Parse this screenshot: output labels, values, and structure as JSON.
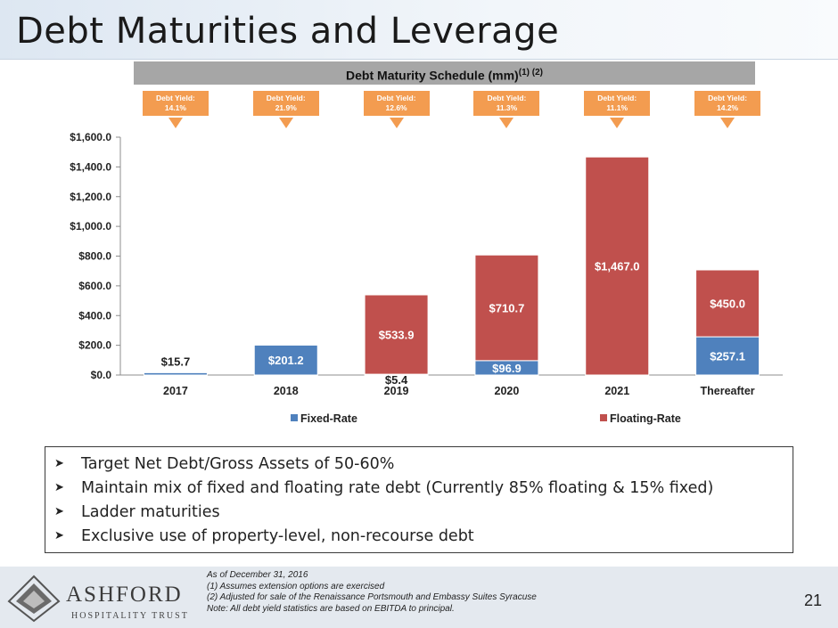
{
  "slide": {
    "title": "Debt Maturities and Leverage",
    "page_number": "21"
  },
  "chart_header": {
    "text": "Debt Maturity Schedule (mm)",
    "superscript": "(1) (2)"
  },
  "debt_yields": [
    {
      "label": "Debt Yield:",
      "value": "14.1%"
    },
    {
      "label": "Debt Yield:",
      "value": "21.9%"
    },
    {
      "label": "Debt Yield:",
      "value": "12.6%"
    },
    {
      "label": "Debt Yield:",
      "value": "11.3%"
    },
    {
      "label": "Debt Yield:",
      "value": "11.1%"
    },
    {
      "label": "Debt Yield:",
      "value": "14.2%"
    }
  ],
  "chart_data": {
    "type": "bar",
    "stacked": true,
    "categories": [
      "2017",
      "2018",
      "2019",
      "2020",
      "2021",
      "Thereafter"
    ],
    "series": [
      {
        "name": "Fixed-Rate",
        "color": "#4f81bd",
        "values": [
          15.7,
          201.2,
          5.4,
          96.9,
          0,
          257.1
        ],
        "labels": [
          "$15.7",
          "$201.2",
          "$5.4",
          "$96.9",
          "",
          "$257.1"
        ]
      },
      {
        "name": "Floating-Rate",
        "color": "#c0504d",
        "values": [
          0,
          0,
          533.9,
          710.7,
          1467.0,
          450.0
        ],
        "labels": [
          "",
          "",
          "$533.9",
          "$710.7",
          "$1,467.0",
          "$450.0"
        ]
      }
    ],
    "ylim": [
      0,
      1600
    ],
    "yticks": [
      0,
      200,
      400,
      600,
      800,
      1000,
      1200,
      1400,
      1600
    ],
    "ytick_labels": [
      "$0.0",
      "$200.0",
      "$400.0",
      "$600.0",
      "$800.0",
      "$1,000.0",
      "$1,200.0",
      "$1,400.0",
      "$1,600.0"
    ],
    "grid": false,
    "legend_position": "bottom"
  },
  "bullets": [
    "Target Net Debt/Gross Assets of 50-60%",
    "Maintain mix of fixed and floating rate debt (Currently 85% floating & 15% fixed)",
    "Ladder maturities",
    "Exclusive use of property-level, non-recourse debt"
  ],
  "footnotes": [
    "As of December 31, 2016",
    "(1)   Assumes  extension options are exercised",
    "(2)   Adjusted for sale of the Renaissance Portsmouth and Embassy Suites Syracuse",
    "Note: All debt yield statistics are based on EBITDA to principal."
  ],
  "logo": {
    "name": "ASHFORD",
    "subtitle": "HOSPITALITY TRUST"
  },
  "colors": {
    "fixed": "#4f81bd",
    "floating": "#c0504d",
    "callout": "#f39c50",
    "header_bar": "#a6a6a6"
  }
}
